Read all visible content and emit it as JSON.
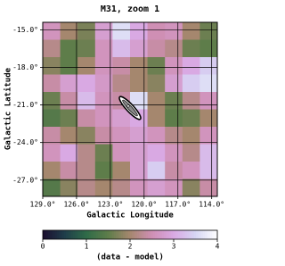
{
  "chart_data": {
    "type": "heatmap",
    "title": "M31, zoom 1",
    "x_label": "Galactic Longitude",
    "y_label": "Galactic Latitude",
    "xlim": [
      129,
      113.5
    ],
    "ylim": [
      -28.3,
      -14.4
    ],
    "xticks": [
      {
        "value": 129,
        "label": "129.0°"
      },
      {
        "value": 126,
        "label": "126.0°"
      },
      {
        "value": 123,
        "label": "123.0°"
      },
      {
        "value": 120,
        "label": "120.0°"
      },
      {
        "value": 117,
        "label": "117.0°"
      },
      {
        "value": 114,
        "label": "114.0°"
      }
    ],
    "yticks": [
      {
        "value": -15,
        "label": "-15.0°"
      },
      {
        "value": -18,
        "label": "-18.0°"
      },
      {
        "value": -21,
        "label": "-21.0°"
      },
      {
        "value": -24,
        "label": "-24.0°"
      },
      {
        "value": -27,
        "label": "-27.0°"
      }
    ],
    "grid": true,
    "z": [
      [
        2.6,
        2.0,
        1.7,
        2.8,
        3.6,
        3.0,
        2.5,
        2.6,
        2.0,
        1.6
      ],
      [
        2.2,
        1.5,
        1.6,
        2.6,
        3.2,
        2.8,
        2.4,
        2.2,
        1.6,
        1.5
      ],
      [
        1.8,
        1.5,
        2.0,
        2.6,
        2.4,
        2.0,
        1.6,
        2.6,
        3.0,
        3.4
      ],
      [
        2.4,
        2.8,
        3.0,
        2.7,
        2.2,
        2.0,
        1.8,
        2.8,
        3.4,
        3.6
      ],
      [
        1.6,
        2.4,
        3.2,
        2.6,
        2.4,
        3.6,
        2.0,
        1.6,
        2.2,
        2.6
      ],
      [
        1.4,
        1.6,
        2.4,
        2.6,
        2.8,
        3.0,
        2.0,
        1.5,
        1.6,
        2.0
      ],
      [
        2.4,
        2.0,
        1.8,
        2.4,
        2.6,
        2.8,
        2.6,
        2.2,
        2.0,
        2.6
      ],
      [
        2.6,
        3.0,
        2.2,
        1.6,
        2.6,
        2.8,
        3.0,
        2.6,
        2.2,
        3.2
      ],
      [
        2.0,
        2.4,
        2.2,
        1.5,
        2.0,
        2.8,
        3.4,
        2.4,
        2.6,
        3.2
      ],
      [
        1.4,
        1.8,
        2.2,
        2.0,
        2.2,
        2.6,
        2.8,
        2.6,
        1.8,
        2.4
      ]
    ],
    "zlim": [
      0,
      4
    ],
    "zticks": [
      0,
      1,
      2,
      3,
      4
    ],
    "colormap": [
      "#1a0d2e",
      "#1f3d4a",
      "#2f6b48",
      "#5e7d4a",
      "#a5876e",
      "#cf8fb4",
      "#d9a9e3",
      "#d6d6f4",
      "#ffffff"
    ],
    "colorbar_label": "(data - model)"
  }
}
